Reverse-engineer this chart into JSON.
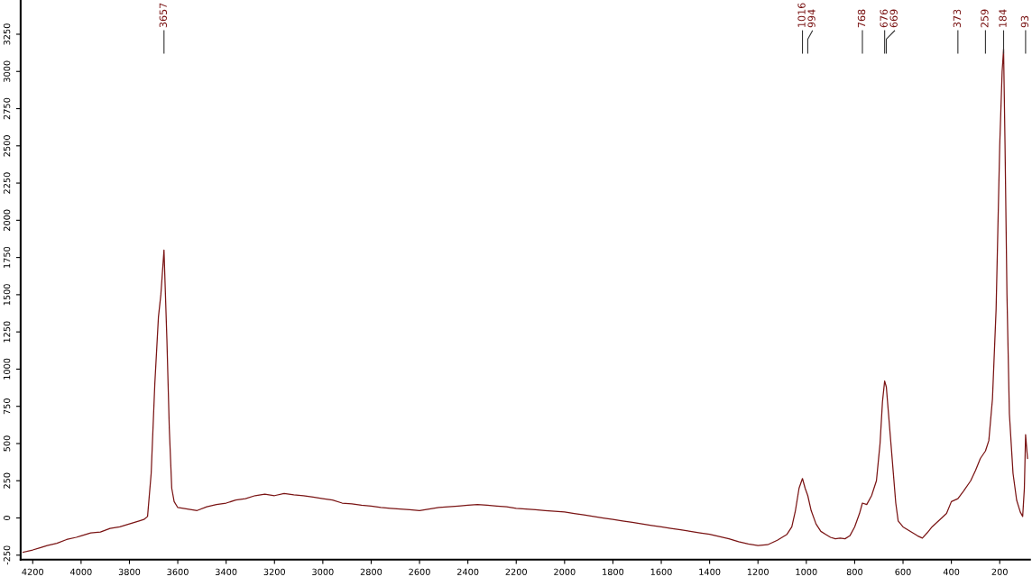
{
  "chart_data": {
    "type": "line",
    "x": [
      4240,
      4200,
      4170,
      4140,
      4100,
      4060,
      4020,
      4000,
      3960,
      3920,
      3880,
      3840,
      3800,
      3760,
      3740,
      3725,
      3710,
      3695,
      3680,
      3670,
      3657,
      3645,
      3635,
      3625,
      3615,
      3600,
      3560,
      3520,
      3480,
      3440,
      3400,
      3360,
      3320,
      3280,
      3240,
      3200,
      3160,
      3120,
      3080,
      3040,
      3000,
      2960,
      2920,
      2880,
      2840,
      2800,
      2760,
      2720,
      2680,
      2640,
      2600,
      2560,
      2520,
      2480,
      2440,
      2400,
      2360,
      2320,
      2280,
      2240,
      2200,
      2160,
      2120,
      2080,
      2040,
      2000,
      1960,
      1920,
      1880,
      1840,
      1800,
      1760,
      1720,
      1680,
      1640,
      1600,
      1560,
      1520,
      1480,
      1440,
      1400,
      1360,
      1320,
      1280,
      1240,
      1200,
      1160,
      1120,
      1080,
      1060,
      1045,
      1030,
      1016,
      1005,
      994,
      980,
      960,
      940,
      920,
      900,
      880,
      860,
      840,
      820,
      800,
      780,
      768,
      750,
      730,
      710,
      695,
      685,
      676,
      669,
      660,
      650,
      640,
      630,
      620,
      600,
      580,
      560,
      540,
      520,
      500,
      480,
      460,
      440,
      420,
      400,
      373,
      350,
      320,
      300,
      280,
      259,
      245,
      230,
      215,
      200,
      190,
      184,
      178,
      170,
      160,
      145,
      130,
      115,
      105,
      98,
      93,
      85
    ],
    "series": [
      {
        "color": "#7a1414",
        "values": [
          -230,
          -215,
          -200,
          -185,
          -170,
          -145,
          -130,
          -120,
          -100,
          -95,
          -70,
          -60,
          -40,
          -20,
          -10,
          10,
          300,
          900,
          1350,
          1500,
          1800,
          1200,
          600,
          200,
          110,
          70,
          60,
          50,
          75,
          90,
          100,
          120,
          130,
          150,
          160,
          150,
          165,
          155,
          150,
          140,
          130,
          120,
          100,
          95,
          85,
          80,
          70,
          65,
          60,
          55,
          50,
          60,
          70,
          75,
          80,
          85,
          90,
          85,
          80,
          75,
          65,
          60,
          55,
          50,
          45,
          40,
          30,
          20,
          10,
          0,
          -10,
          -20,
          -30,
          -40,
          -50,
          -60,
          -70,
          -80,
          -90,
          -100,
          -110,
          -125,
          -140,
          -160,
          -175,
          -185,
          -180,
          -150,
          -110,
          -60,
          50,
          200,
          265,
          200,
          150,
          50,
          -40,
          -90,
          -110,
          -130,
          -140,
          -135,
          -140,
          -120,
          -60,
          30,
          100,
          90,
          150,
          250,
          500,
          780,
          920,
          880,
          700,
          500,
          300,
          100,
          -20,
          -60,
          -80,
          -100,
          -120,
          -135,
          -100,
          -60,
          -30,
          0,
          30,
          110,
          130,
          180,
          250,
          320,
          400,
          450,
          520,
          800,
          1400,
          2500,
          3000,
          3150,
          2500,
          1500,
          700,
          300,
          120,
          40,
          10,
          200,
          560,
          400
        ]
      }
    ],
    "xlim": [
      4250,
      75
    ],
    "xticks": [
      4200,
      4000,
      3800,
      3600,
      3400,
      3200,
      3000,
      2800,
      2600,
      2400,
      2200,
      2000,
      1800,
      1600,
      1400,
      1200,
      1000,
      800,
      600,
      400,
      200
    ],
    "ylim": [
      -280,
      3480
    ],
    "yticks": [
      -250,
      0,
      250,
      500,
      750,
      1000,
      1250,
      1500,
      1750,
      2000,
      2250,
      2500,
      2750,
      3000,
      3250
    ],
    "grid": false,
    "legend": false,
    "marker": "none",
    "line_style": "solid",
    "ref_lines": [
      {
        "axis": "x",
        "value": 3657,
        "label": "3657"
      },
      {
        "axis": "x",
        "value": 1016,
        "label": "1016"
      },
      {
        "axis": "x",
        "value": 994,
        "label": "994"
      },
      {
        "axis": "x",
        "value": 768,
        "label": "768"
      },
      {
        "axis": "x",
        "value": 676,
        "label": "676"
      },
      {
        "axis": "x",
        "value": 669,
        "label": "669"
      },
      {
        "axis": "x",
        "value": 373,
        "label": "373"
      },
      {
        "axis": "x",
        "value": 259,
        "label": "259"
      },
      {
        "axis": "x",
        "value": 184,
        "label": "184"
      },
      {
        "axis": "x",
        "value": 93,
        "label": "93"
      }
    ]
  }
}
